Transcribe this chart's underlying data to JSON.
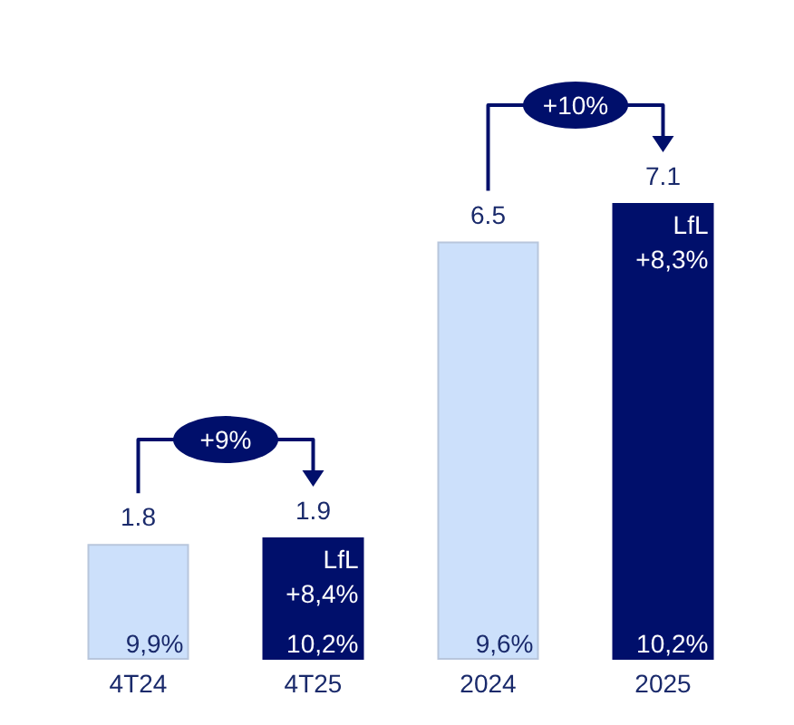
{
  "chart_data": {
    "type": "bar",
    "categories": [
      "4T24",
      "4T25",
      "2024",
      "2025"
    ],
    "values": [
      1.8,
      1.9,
      6.5,
      7.1
    ],
    "colors": [
      "#cce0fb",
      "#000f6b",
      "#cce0fb",
      "#000f6b"
    ],
    "data_labels": true,
    "annotations": [
      "+9%",
      "+10%",
      {
        "text": "9,9%",
        "x": "4T24",
        "y": 0
      },
      {
        "text": "LfL\n+8,4%",
        "x": "4T25",
        "y": 1.9
      },
      {
        "text": "10,2%",
        "x": "4T25",
        "y": 0
      },
      {
        "text": "9,6%",
        "x": "2024",
        "y": 0
      },
      {
        "text": "LfL\n+8,3%",
        "x": "2025",
        "y": 7.1
      },
      {
        "text": "10,2%",
        "x": "2025",
        "y": 0
      }
    ]
  }
}
